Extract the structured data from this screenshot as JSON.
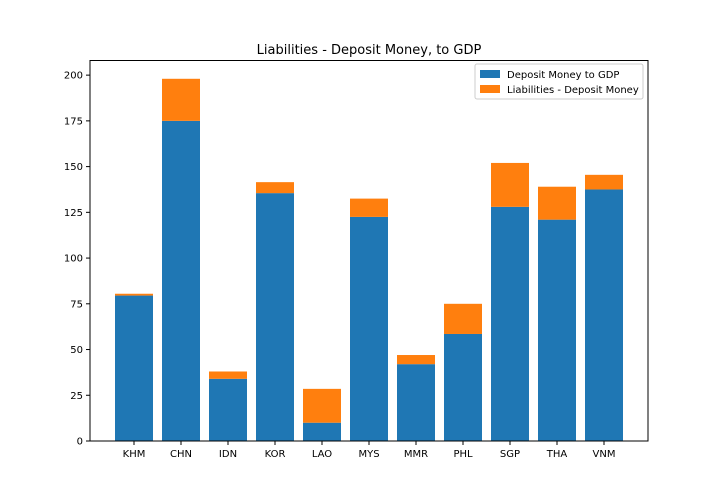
{
  "chart_data": {
    "type": "bar",
    "stacked": true,
    "title": "Liabilities - Deposit Money, to GDP",
    "xlabel": "",
    "ylabel": "",
    "categories": [
      "KHM",
      "CHN",
      "IDN",
      "KOR",
      "LAO",
      "MYS",
      "MMR",
      "PHL",
      "SGP",
      "THA",
      "VNM"
    ],
    "series": [
      {
        "name": "Deposit Money to GDP",
        "color": "#1f77b4",
        "values": [
          79.5,
          175,
          34,
          135.5,
          10,
          122.5,
          42,
          58.5,
          128,
          121,
          137.5
        ]
      },
      {
        "name": "Liabilities - Deposit Money",
        "color": "#ff7f0e",
        "values": [
          1,
          23,
          4,
          6,
          18.5,
          10,
          5,
          16.5,
          24,
          18,
          8
        ]
      }
    ],
    "ylim": [
      0,
      208
    ],
    "yticks": [
      0,
      25,
      50,
      75,
      100,
      125,
      150,
      175,
      200
    ],
    "grid": false,
    "legend_position": "top-right"
  }
}
